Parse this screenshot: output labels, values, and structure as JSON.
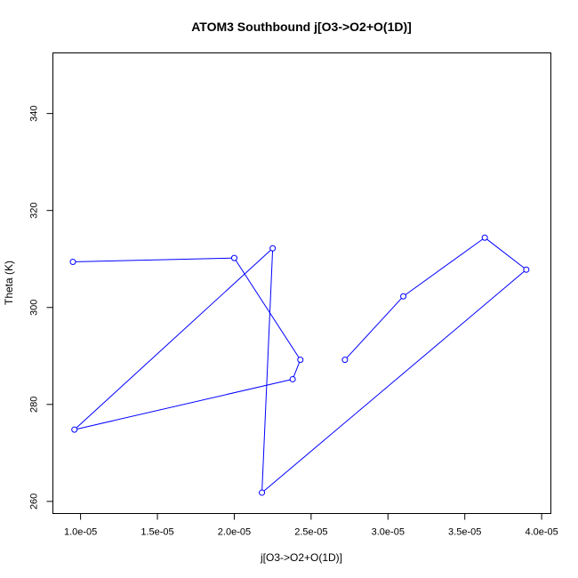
{
  "chart_data": {
    "type": "line",
    "title": "ATOM3 Southbound j[O3->O2+O(1D)]",
    "xlabel": "j[O3->O2+O(1D)]",
    "ylabel": "Theta (K)",
    "xlim": [
      8.2e-06,
      4.06e-05
    ],
    "ylim": [
      257.5,
      352.5
    ],
    "xticks": [
      1e-05,
      1.5e-05,
      2e-05,
      2.5e-05,
      3e-05,
      3.5e-05,
      4e-05
    ],
    "xtick_labels": [
      "1.0e-05",
      "1.5e-05",
      "2.0e-05",
      "2.5e-05",
      "3.0e-05",
      "3.5e-05",
      "4.0e-05"
    ],
    "yticks": [
      260,
      280,
      300,
      320,
      340
    ],
    "ytick_labels": [
      "260",
      "280",
      "300",
      "320",
      "340"
    ],
    "grid": false,
    "series": [
      {
        "color": "#0000ff",
        "marker": "open-circle",
        "points": [
          {
            "x": 9.5e-06,
            "y": 309.4
          },
          {
            "x": 2e-05,
            "y": 310.2
          },
          {
            "x": 2.43e-05,
            "y": 289.2
          },
          {
            "x": 2.38e-05,
            "y": 285.2
          },
          {
            "x": 9.6e-06,
            "y": 274.8
          },
          {
            "x": 2.25e-05,
            "y": 312.2
          },
          {
            "x": 2.18e-05,
            "y": 261.8
          },
          {
            "x": 3.9e-05,
            "y": 307.8
          },
          {
            "x": 3.63e-05,
            "y": 314.4
          },
          {
            "x": 3.1e-05,
            "y": 302.3
          },
          {
            "x": 2.72e-05,
            "y": 289.2
          }
        ]
      }
    ]
  }
}
